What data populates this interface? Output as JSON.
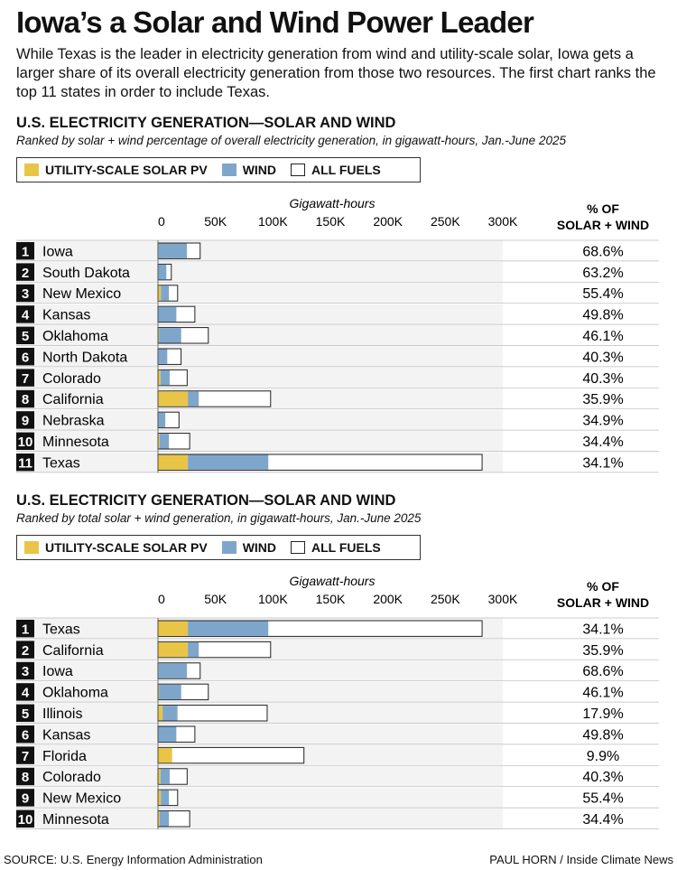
{
  "title": "Iowa’s a Solar and Wind Power Leader",
  "intro": "While Texas is the leader in electricity generation from wind and utility-scale solar, Iowa gets a larger share of its overall electricity generation from those two resources. The first chart ranks the top 11 states in order to include Texas.",
  "source": "SOURCE: U.S. Energy Information Administration",
  "credit": "PAUL HORN / Inside Climate News",
  "colors": {
    "solar": "#e8c547",
    "wind": "#7ea6cb",
    "all_fuels": "#ffffff",
    "row_bg": "#f3f3f3",
    "rank_bg": "#111111"
  },
  "legend": {
    "solar": "UTILITY-SCALE SOLAR PV",
    "wind": "WIND",
    "all_fuels": "ALL FUELS"
  },
  "chart_data": [
    {
      "type": "bar",
      "title": "U.S. ELECTRICITY GENERATION—SOLAR AND WIND",
      "subtitle": "Ranked by solar + wind percentage of overall electricity generation, in gigawatt-hours, Jan.-June 2025",
      "xlabel": "Gigawatt-hours",
      "pct_label_1": "% OF",
      "pct_label_2": "SOLAR + WIND",
      "xlim": [
        0,
        300000
      ],
      "ticks": [
        "0",
        "50K",
        "100K",
        "150K",
        "200K",
        "250K",
        "300K"
      ],
      "tick_values": [
        0,
        50000,
        100000,
        150000,
        200000,
        250000,
        300000
      ],
      "categories": [
        "Iowa",
        "South Dakota",
        "New Mexico",
        "Kansas",
        "Oklahoma",
        "North Dakota",
        "Colorado",
        "California",
        "Nebraska",
        "Minnesota",
        "Texas"
      ],
      "ranks": [
        "1",
        "2",
        "3",
        "4",
        "5",
        "6",
        "7",
        "8",
        "9",
        "10",
        "11"
      ],
      "series": [
        {
          "name": "UTILITY-SCALE SOLAR PV",
          "values": [
            600,
            100,
            2500,
            400,
            900,
            100,
            2200,
            26000,
            300,
            1400,
            26000
          ]
        },
        {
          "name": "WIND",
          "values": [
            24600,
            7200,
            7000,
            15600,
            19300,
            8000,
            8000,
            9500,
            6100,
            8100,
            70000
          ]
        },
        {
          "name": "ALL FUELS",
          "values": [
            36700,
            11600,
            17100,
            32100,
            43800,
            20100,
            25400,
            98000,
            18300,
            27600,
            282000
          ]
        }
      ],
      "percentages": [
        "68.6%",
        "63.2%",
        "55.4%",
        "49.8%",
        "46.1%",
        "40.3%",
        "40.3%",
        "35.9%",
        "34.9%",
        "34.4%",
        "34.1%"
      ]
    },
    {
      "type": "bar",
      "title": "U.S. ELECTRICITY GENERATION—SOLAR AND WIND",
      "subtitle": "Ranked by total solar + wind generation, in gigawatt-hours, Jan.-June 2025",
      "xlabel": "Gigawatt-hours",
      "pct_label_1": "% OF",
      "pct_label_2": "SOLAR + WIND",
      "xlim": [
        0,
        300000
      ],
      "ticks": [
        "0",
        "50K",
        "100K",
        "150K",
        "200K",
        "250K",
        "300K"
      ],
      "tick_values": [
        0,
        50000,
        100000,
        150000,
        200000,
        250000,
        300000
      ],
      "categories": [
        "Texas",
        "California",
        "Iowa",
        "Oklahoma",
        "Illinois",
        "Kansas",
        "Florida",
        "Colorado",
        "New Mexico",
        "Minnesota"
      ],
      "ranks": [
        "1",
        "2",
        "3",
        "4",
        "5",
        "6",
        "7",
        "8",
        "9",
        "10"
      ],
      "series": [
        {
          "name": "UTILITY-SCALE SOLAR PV",
          "values": [
            26000,
            26000,
            600,
            900,
            4000,
            400,
            12300,
            2200,
            2500,
            1400
          ]
        },
        {
          "name": "WIND",
          "values": [
            70000,
            9500,
            24600,
            19300,
            13000,
            15600,
            0,
            8000,
            7000,
            8100
          ]
        },
        {
          "name": "ALL FUELS",
          "values": [
            282000,
            98000,
            36700,
            43800,
            95000,
            32100,
            127000,
            25400,
            17100,
            27600
          ]
        }
      ],
      "percentages": [
        "34.1%",
        "35.9%",
        "68.6%",
        "46.1%",
        "17.9%",
        "49.8%",
        "9.9%",
        "40.3%",
        "55.4%",
        "34.4%"
      ]
    }
  ]
}
